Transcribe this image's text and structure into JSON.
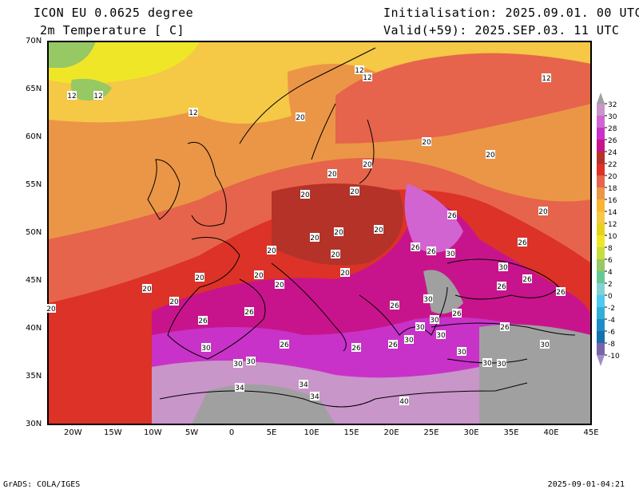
{
  "header": {
    "model": "ICON EU 0.0625 degree",
    "variable": "2m Temperature [ C]",
    "initialisation": "Initialisation: 2025.09.01. 00 UTC",
    "valid": "Valid(+59): 2025.SEP.03. 11 UTC"
  },
  "axes": {
    "lat_labels": [
      "70N",
      "65N",
      "60N",
      "55N",
      "50N",
      "45N",
      "40N",
      "35N",
      "30N"
    ],
    "lon_labels": [
      "20W",
      "15W",
      "10W",
      "5W",
      "0",
      "5E",
      "10E",
      "15E",
      "20E",
      "25E",
      "30E",
      "35E",
      "40E",
      "45E"
    ]
  },
  "colorbar": {
    "labels": [
      "32",
      "30",
      "28",
      "26",
      "24",
      "22",
      "20",
      "18",
      "16",
      "14",
      "12",
      "10",
      "8",
      "6",
      "4",
      "2",
      "0",
      "-2",
      "-4",
      "-6",
      "-8",
      "-10"
    ],
    "colors": [
      "#a0a0a0",
      "#c896c8",
      "#d264d2",
      "#c832c8",
      "#c8148c",
      "#b43228",
      "#dc3228",
      "#e6644b",
      "#eb9646",
      "#fab432",
      "#f5c846",
      "#e6d21e",
      "#f0e628",
      "#c8dc3c",
      "#96c864",
      "#64c896",
      "#82d2d2",
      "#50c8f0",
      "#32afd7",
      "#1e8cc8",
      "#1470aa",
      "#7864aa",
      "#a08cc8"
    ]
  },
  "contour_labels": [
    "12",
    "12",
    "12",
    "12",
    "12",
    "12",
    "20",
    "20",
    "20",
    "20",
    "20",
    "20",
    "20",
    "20",
    "20",
    "20",
    "20",
    "20",
    "20",
    "20",
    "20",
    "20",
    "20",
    "20",
    "20",
    "20",
    "26",
    "26",
    "26",
    "26",
    "26",
    "26",
    "26",
    "26",
    "26",
    "26",
    "26",
    "26",
    "26",
    "26",
    "26",
    "30",
    "30",
    "30",
    "30",
    "30",
    "30",
    "30",
    "30",
    "30",
    "30",
    "30",
    "30",
    "30",
    "30",
    "34",
    "34",
    "34",
    "40"
  ],
  "footer": {
    "left": "GrADS: COLA/IGES",
    "right": "2025-09-01-04:21"
  }
}
